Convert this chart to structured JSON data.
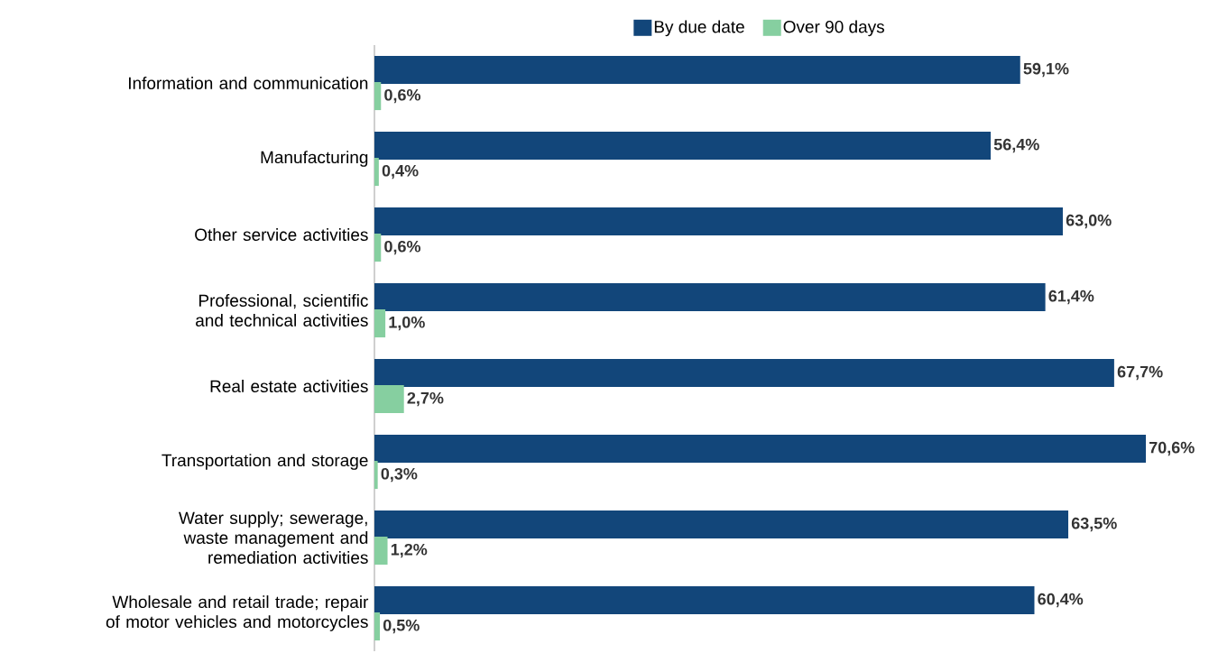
{
  "chart_data": {
    "type": "bar",
    "orientation": "horizontal",
    "legend": "top",
    "categories": [
      "Information and communication",
      "Manufacturing",
      "Other service activities",
      "Professional, scientific and technical activities",
      "Real estate activities",
      "Transportation and storage",
      "Water supply; sewerage, waste management and remediation activities",
      "Wholesale and retail trade; repair of motor vehicles and motorcycles"
    ],
    "series": [
      {
        "name": "By due date",
        "color": "#12467a",
        "values": [
          59.1,
          56.4,
          63.0,
          61.4,
          67.7,
          70.6,
          63.5,
          60.4
        ],
        "value_labels": [
          "59,1%",
          "56,4%",
          "63,0%",
          "61,4%",
          "67,7%",
          "70,6%",
          "63,5%",
          "60,4%"
        ]
      },
      {
        "name": "Over 90 days",
        "color": "#86cfa0",
        "values": [
          0.6,
          0.4,
          0.6,
          1.0,
          2.7,
          0.3,
          1.2,
          0.5
        ],
        "value_labels": [
          "0,6%",
          "0,4%",
          "0,6%",
          "1,0%",
          "2,7%",
          "0,3%",
          "1,2%",
          "0,5%"
        ]
      }
    ]
  }
}
